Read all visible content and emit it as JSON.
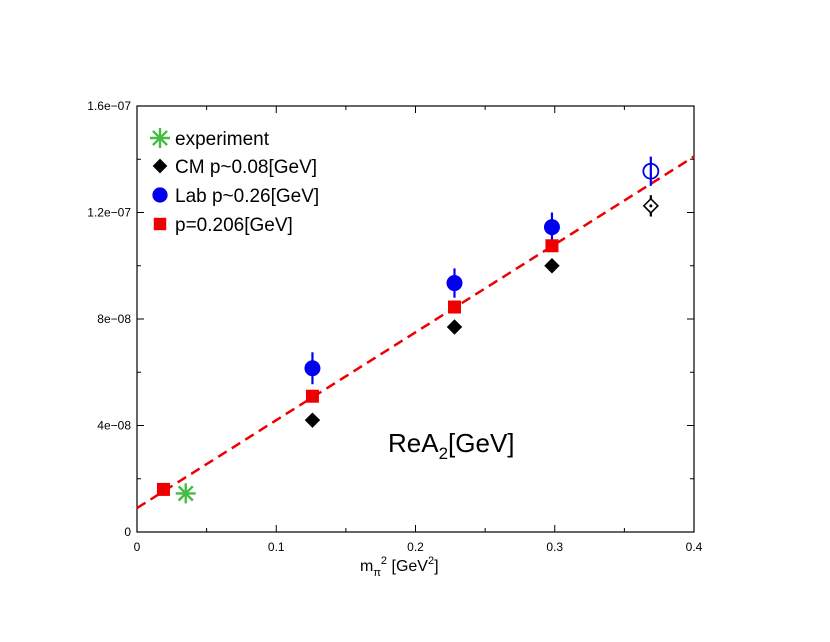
{
  "chart_data": {
    "type": "scatter",
    "xlabel": {
      "base": "m",
      "sub": "π",
      "sup": "2",
      "units_prefix": "[GeV",
      "units_sup": "2",
      "units_suffix": "]"
    },
    "ylabel": "",
    "xlim": [
      0,
      0.4
    ],
    "ylim": [
      0,
      1.6e-07
    ],
    "x_ticks": [
      0,
      0.1,
      0.2,
      0.3,
      0.4
    ],
    "x_tick_labels": [
      "0",
      "0.1",
      "0.2",
      "0.3",
      "0.4"
    ],
    "y_ticks": [
      0,
      4e-08,
      8e-08,
      1.2e-07,
      1.6e-07
    ],
    "y_tick_labels": [
      "0",
      "4e−08",
      "8e−08",
      "1.2e−07",
      "1.6e−07"
    ],
    "grid": false,
    "legend_position": "top-left",
    "annotation": {
      "main": "ReA",
      "sub": "2",
      "suffix": "[GeV]"
    },
    "series": [
      {
        "name": "experiment",
        "marker": "asterisk",
        "color": "#44bb44",
        "points": [
          {
            "x": 0.035,
            "y": 1.45e-08
          }
        ]
      },
      {
        "name": "CM p~0.08[GeV]",
        "marker": "diamond",
        "color": "#000000",
        "points": [
          {
            "x": 0.126,
            "y": 4.2e-08
          },
          {
            "x": 0.228,
            "y": 7.7e-08
          },
          {
            "x": 0.298,
            "y": 1e-07
          },
          {
            "x": 0.369,
            "y": 1.225e-07,
            "open": true,
            "err": 4e-09
          }
        ]
      },
      {
        "name": "Lab p~0.26[GeV]",
        "marker": "circle",
        "color": "#0000ee",
        "points": [
          {
            "x": 0.126,
            "y": 6.15e-08,
            "err": 6e-09
          },
          {
            "x": 0.228,
            "y": 9.35e-08,
            "err": 5.5e-09
          },
          {
            "x": 0.298,
            "y": 1.145e-07,
            "err": 5.5e-09
          },
          {
            "x": 0.369,
            "y": 1.355e-07,
            "err": 5.5e-09,
            "open": true
          }
        ]
      },
      {
        "name": "p=0.206[GeV]",
        "marker": "square",
        "color": "#ee0000",
        "points": [
          {
            "x": 0.019,
            "y": 1.6e-08
          },
          {
            "x": 0.126,
            "y": 5.1e-08
          },
          {
            "x": 0.228,
            "y": 8.45e-08
          },
          {
            "x": 0.298,
            "y": 1.075e-07
          }
        ]
      }
    ],
    "fit_line": {
      "style": "dashed",
      "color": "#ee0000",
      "x": [
        0,
        0.4
      ],
      "y": [
        9e-09,
        1.41e-07
      ]
    }
  }
}
